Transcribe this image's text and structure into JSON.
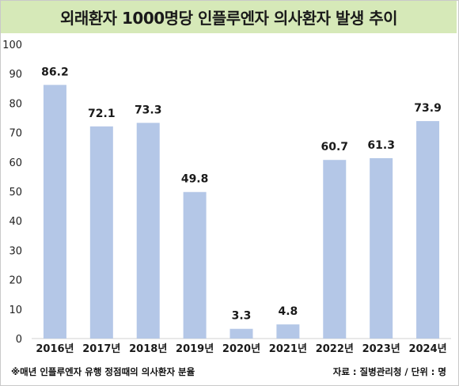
{
  "chart_data": {
    "type": "bar",
    "title": "외래환자 1000명당 인플루엔자 의사환자 발생 추이",
    "categories": [
      "2016년",
      "2017년",
      "2018년",
      "2019년",
      "2020년",
      "2021년",
      "2022년",
      "2023년",
      "2024년"
    ],
    "values": [
      86.2,
      72.1,
      73.3,
      49.8,
      3.3,
      4.8,
      60.7,
      61.3,
      73.9
    ],
    "value_labels": [
      "86.2",
      "72.1",
      "73.3",
      "49.8",
      "3.3",
      "4.8",
      "60.7",
      "61.3",
      "73.9"
    ],
    "ylim": [
      0,
      100
    ],
    "yticks": [
      "0",
      "10",
      "20",
      "30",
      "40",
      "50",
      "60",
      "70",
      "80",
      "90",
      "100"
    ],
    "grid": false,
    "bar_color": "#b4c7e7",
    "xlabel": "",
    "ylabel": ""
  },
  "header": {
    "background": "#d6e9b8"
  },
  "footer": {
    "note": "※매년 인플루엔자 유행 정점때의 의사환자 분율",
    "source": "자료 : 질병관리청 / 단위 : 명"
  }
}
